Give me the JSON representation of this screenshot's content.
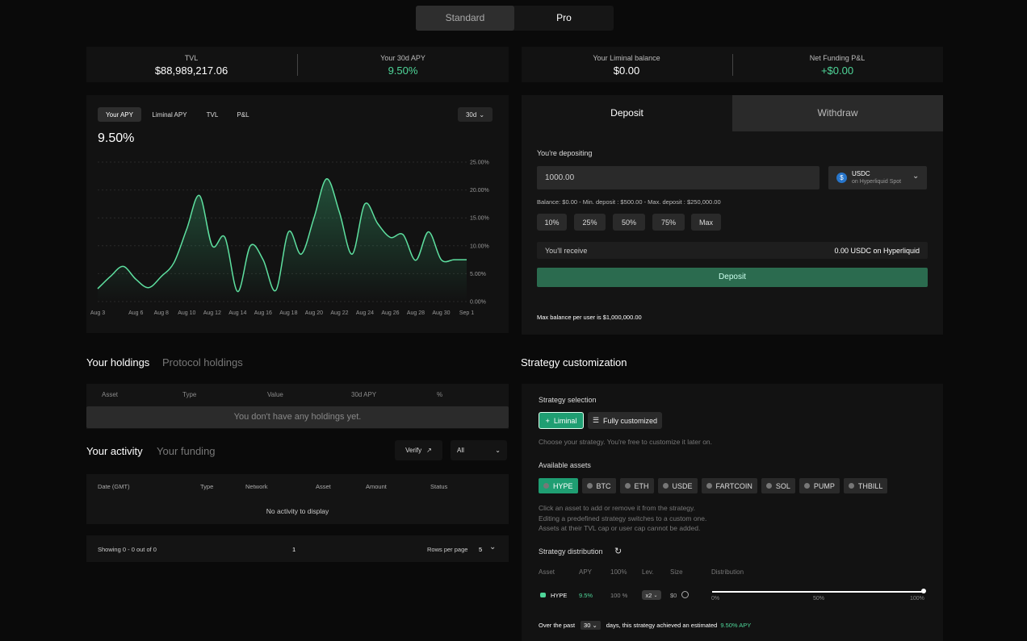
{
  "mode_tabs": [
    "Standard",
    "Pro"
  ],
  "stats": [
    {
      "label": "TVL",
      "value": "$88,989,217.06"
    },
    {
      "label": "Your 30d APY",
      "value": "9.50%"
    },
    {
      "label": "Your Liminal balance",
      "value": "$0.00"
    },
    {
      "label": "Net Funding P&L",
      "value": "+$0.00"
    }
  ],
  "chart_panel": {
    "tabs": [
      "Your APY",
      "Liminal APY",
      "TVL",
      "P&L"
    ],
    "range": "30d",
    "headline": "9.50%"
  },
  "chart_data": {
    "type": "line",
    "color": "#5ee0a0",
    "x": [
      "Aug 3",
      null,
      null,
      "Aug 6",
      null,
      "Aug 8",
      null,
      "Aug 10",
      null,
      "Aug 12",
      null,
      "Aug 14",
      null,
      "Aug 16",
      null,
      "Aug 18",
      null,
      "Aug 20",
      null,
      "Aug 22",
      null,
      "Aug 24",
      null,
      "Aug 26",
      null,
      "Aug 28",
      null,
      "Aug 30",
      null,
      "Sep 1"
    ],
    "values": [
      2.3,
      4.5,
      6.3,
      4,
      2.5,
      4.5,
      7,
      13,
      19,
      10,
      11.5,
      1.8,
      10,
      7.5,
      2,
      12.5,
      8.5,
      15,
      22,
      16,
      8.5,
      17.5,
      14,
      11.5,
      12,
      7.4,
      12.5,
      7.5,
      7.5,
      7.5
    ],
    "ylim": [
      0,
      25
    ],
    "yticks": [
      {
        "value": 0,
        "label": "0.00%"
      },
      {
        "value": 5,
        "label": "5.00%"
      },
      {
        "value": 10,
        "label": "10.00%"
      },
      {
        "value": 15,
        "label": "15.00%"
      },
      {
        "value": 20,
        "label": "20.00%"
      },
      {
        "value": 25,
        "label": "25.00%"
      }
    ],
    "grid": true
  },
  "deposit": {
    "tabs": [
      "Deposit",
      "Withdraw"
    ],
    "prompt": "You're depositing",
    "amount": "1000.00",
    "token": "USDC",
    "network": "on Hyperliquid Spot",
    "limits": "Balance: $0.00 - Min. deposit : $500.00 - Max. deposit : $250,000.00",
    "presets": [
      "10%",
      "25%",
      "50%",
      "75%",
      "Max"
    ],
    "receive_label": "You'll receive",
    "receive_value": "0.00 USDC on Hyperliquid",
    "button": "Deposit",
    "note": "Max balance per user is $1,000,000.00"
  },
  "holdings": {
    "tabs": [
      "Your holdings",
      "Protocol holdings"
    ],
    "columns": [
      "Asset",
      "Type",
      "Value",
      "30d APY",
      "%"
    ],
    "empty": "You don't have any holdings yet."
  },
  "activity": {
    "tabs": [
      "Your activity",
      "Your funding"
    ],
    "verify": "Verify",
    "filter": "All",
    "columns": [
      "Date (GMT)",
      "Type",
      "Network",
      "Asset",
      "Amount",
      "Status"
    ],
    "empty": "No activity to display",
    "showing": "Showing 0 - 0 out of 0",
    "page": "1",
    "rows_label": "Rows per page",
    "rows_value": "5"
  },
  "strategy": {
    "title": "Strategy customization",
    "selection_label": "Strategy selection",
    "options": [
      "Liminal",
      "Fully customized"
    ],
    "selection_hint": "Choose your strategy. You're free to customize it later on.",
    "assets_label": "Available assets",
    "assets": [
      "HYPE",
      "BTC",
      "ETH",
      "USDE",
      "FARTCOIN",
      "SOL",
      "PUMP",
      "THBILL"
    ],
    "asset_hints": [
      "Click an asset to add or remove it from the strategy.",
      "Editing a predefined strategy switches to a custom one.",
      "Assets at their TVL cap or user cap cannot be added."
    ],
    "distribution_label": "Strategy distribution",
    "columns": [
      "Asset",
      "APY",
      "100%",
      "Lev.",
      "Size",
      "Distribution"
    ],
    "row": {
      "asset": "HYPE",
      "apy": "9.5%",
      "percent": "100 %",
      "leverage": "x2",
      "size": "$0"
    },
    "scale": [
      "0%",
      "50%",
      "100%"
    ],
    "footer": {
      "prefix": "Over the past",
      "days": "30",
      "middle": "days, this strategy achieved an estimated",
      "apy": "9.50% APY"
    }
  }
}
